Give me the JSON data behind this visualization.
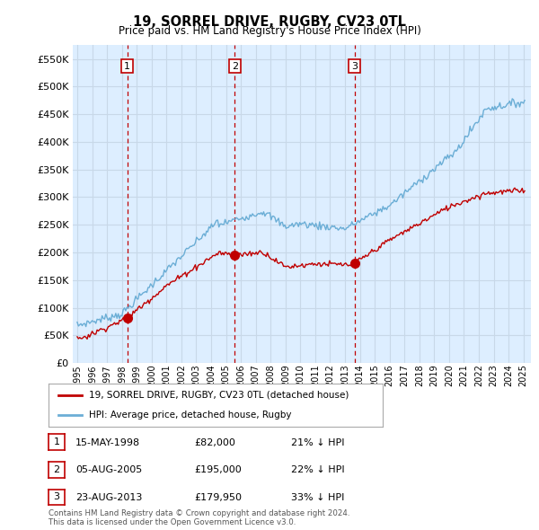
{
  "title": "19, SORREL DRIVE, RUGBY, CV23 0TL",
  "subtitle": "Price paid vs. HM Land Registry's House Price Index (HPI)",
  "ylim": [
    0,
    575000
  ],
  "yticks": [
    0,
    50000,
    100000,
    150000,
    200000,
    250000,
    300000,
    350000,
    400000,
    450000,
    500000,
    550000
  ],
  "xlim_start": 1994.7,
  "xlim_end": 2025.5,
  "hpi_color": "#6baed6",
  "price_color": "#c00000",
  "dashed_color": "#c00000",
  "grid_color": "#c8d8e8",
  "chart_bg": "#ddeeff",
  "background_color": "#ffffff",
  "sale_dates": [
    1998.37,
    2005.59,
    2013.64
  ],
  "sale_prices": [
    82000,
    195000,
    179950
  ],
  "sale_labels": [
    "1",
    "2",
    "3"
  ],
  "legend_label_price": "19, SORREL DRIVE, RUGBY, CV23 0TL (detached house)",
  "legend_label_hpi": "HPI: Average price, detached house, Rugby",
  "table_rows": [
    {
      "num": "1",
      "date": "15-MAY-1998",
      "price": "£82,000",
      "pct": "21% ↓ HPI"
    },
    {
      "num": "2",
      "date": "05-AUG-2005",
      "price": "£195,000",
      "pct": "22% ↓ HPI"
    },
    {
      "num": "3",
      "date": "23-AUG-2013",
      "price": "£179,950",
      "pct": "33% ↓ HPI"
    }
  ],
  "footer": "Contains HM Land Registry data © Crown copyright and database right 2024.\nThis data is licensed under the Open Government Licence v3.0."
}
